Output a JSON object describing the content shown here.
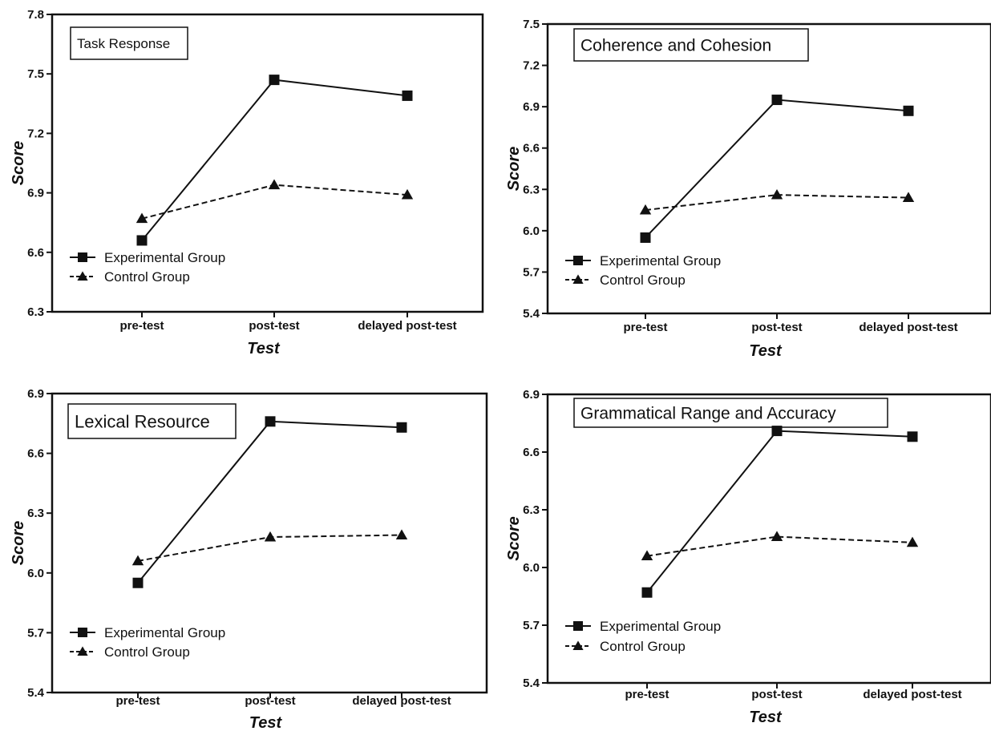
{
  "chart_data": [
    {
      "type": "line",
      "title": "Task Response",
      "xlabel": "Test",
      "ylabel": "Score",
      "categories": [
        "pre-test",
        "post-test",
        "delayed post-test"
      ],
      "ylim": [
        6.3,
        7.8
      ],
      "yticks": [
        "6.3",
        "6.6",
        "6.9",
        "7.2",
        "7.5",
        "7.8"
      ],
      "series": [
        {
          "name": "Experimental Group",
          "values": [
            6.66,
            7.47,
            7.39
          ],
          "marker": "square",
          "line": "solid"
        },
        {
          "name": "Control Group",
          "values": [
            6.77,
            6.94,
            6.89
          ],
          "marker": "triangle",
          "line": "dashed"
        }
      ],
      "legend": "bottom-left"
    },
    {
      "type": "line",
      "title": "Coherence and Cohesion",
      "xlabel": "Test",
      "ylabel": "Score",
      "categories": [
        "pre-test",
        "post-test",
        "delayed post-test"
      ],
      "ylim": [
        5.4,
        7.5
      ],
      "yticks": [
        "5.4",
        "5.7",
        "6.0",
        "6.3",
        "6.6",
        "6.9",
        "7.2",
        "7.5"
      ],
      "series": [
        {
          "name": "Experimental Group",
          "values": [
            5.95,
            6.95,
            6.87
          ],
          "marker": "square",
          "line": "solid"
        },
        {
          "name": "Control Group",
          "values": [
            6.15,
            6.26,
            6.24
          ],
          "marker": "triangle",
          "line": "dashed"
        }
      ],
      "legend": "bottom-left"
    },
    {
      "type": "line",
      "title": "Lexical Resource",
      "xlabel": "Test",
      "ylabel": "Score",
      "categories": [
        "pre-test",
        "post-test",
        "delayed post-test"
      ],
      "ylim": [
        5.4,
        6.9
      ],
      "yticks": [
        "5.4",
        "5.7",
        "6.0",
        "6.3",
        "6.6",
        "6.9"
      ],
      "series": [
        {
          "name": "Experimental Group",
          "values": [
            5.95,
            6.76,
            6.73
          ],
          "marker": "square",
          "line": "solid"
        },
        {
          "name": "Control Group",
          "values": [
            6.06,
            6.18,
            6.19
          ],
          "marker": "triangle",
          "line": "dashed"
        }
      ],
      "legend": "bottom-left"
    },
    {
      "type": "line",
      "title": "Grammatical Range and  Accuracy",
      "xlabel": "Test",
      "ylabel": "Score",
      "categories": [
        "pre-test",
        "post-test",
        "delayed post-test"
      ],
      "ylim": [
        5.4,
        6.9
      ],
      "yticks": [
        "5.4",
        "5.7",
        "6.0",
        "6.3",
        "6.6",
        "6.9"
      ],
      "series": [
        {
          "name": "Experimental Group",
          "values": [
            5.87,
            6.71,
            6.68
          ],
          "marker": "square",
          "line": "solid"
        },
        {
          "name": "Control Group",
          "values": [
            6.06,
            6.16,
            6.13
          ],
          "marker": "triangle",
          "line": "dashed"
        }
      ],
      "legend": "bottom-left"
    }
  ]
}
